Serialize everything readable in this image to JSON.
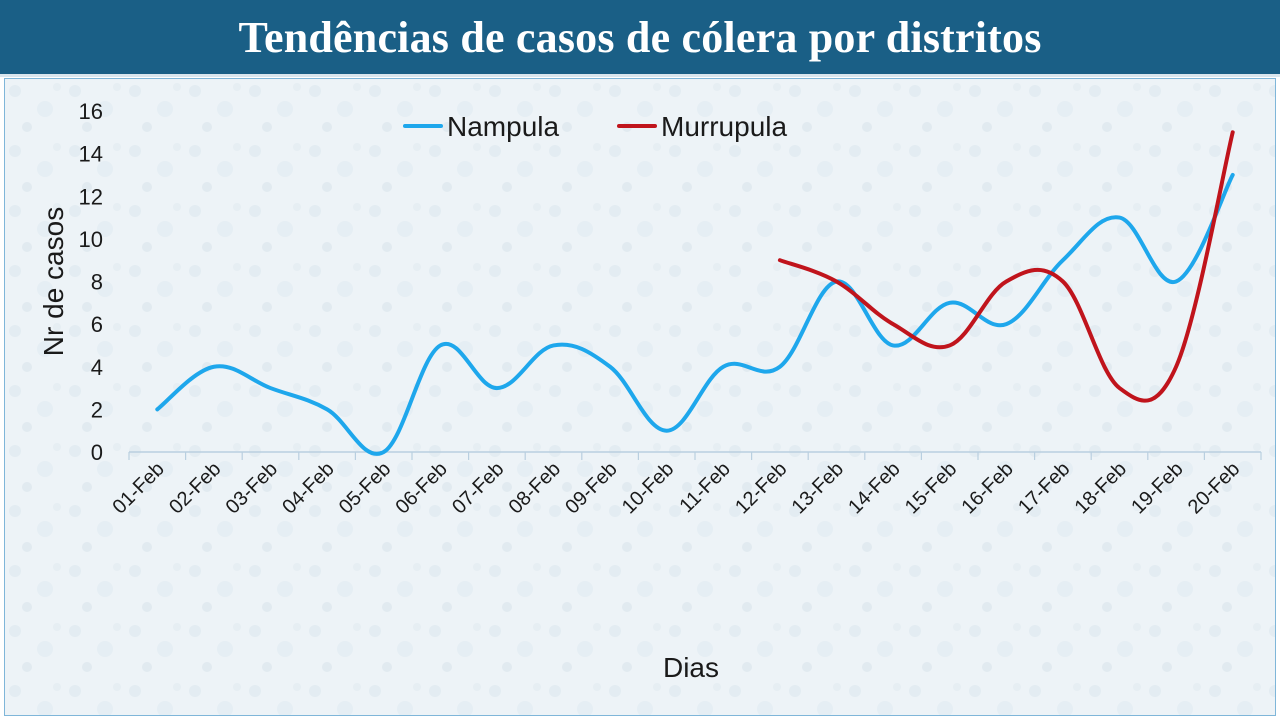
{
  "header": {
    "title": "Tendências de casos de cólera por distritos"
  },
  "chart_data": {
    "type": "line",
    "title": "Tendências de casos de cólera por distritos",
    "xlabel": "Dias",
    "ylabel": "Nr de casos",
    "ylim": [
      0,
      16
    ],
    "yticks": [
      0,
      2,
      4,
      6,
      8,
      10,
      12,
      14,
      16
    ],
    "categories": [
      "01-Feb",
      "02-Feb",
      "03-Feb",
      "04-Feb",
      "05-Feb",
      "06-Feb",
      "07-Feb",
      "08-Feb",
      "09-Feb",
      "10-Feb",
      "11-Feb",
      "12-Feb",
      "13-Feb",
      "14-Feb",
      "15-Feb",
      "16-Feb",
      "17-Feb",
      "18-Feb",
      "19-Feb",
      "20-Feb"
    ],
    "legend_position": "top-center",
    "grid": false,
    "smooth": true,
    "series": [
      {
        "name": "Nampula",
        "color": "#1ea7ec",
        "values": [
          2,
          4,
          3,
          2,
          0,
          5,
          3,
          5,
          4,
          1,
          4,
          4,
          8,
          5,
          7,
          6,
          9,
          11,
          8,
          13
        ]
      },
      {
        "name": "Murrupula",
        "color": "#c0141c",
        "values": [
          null,
          null,
          null,
          null,
          null,
          null,
          null,
          null,
          null,
          null,
          null,
          9,
          8,
          6,
          5,
          8,
          8,
          3,
          4,
          15
        ]
      }
    ]
  }
}
